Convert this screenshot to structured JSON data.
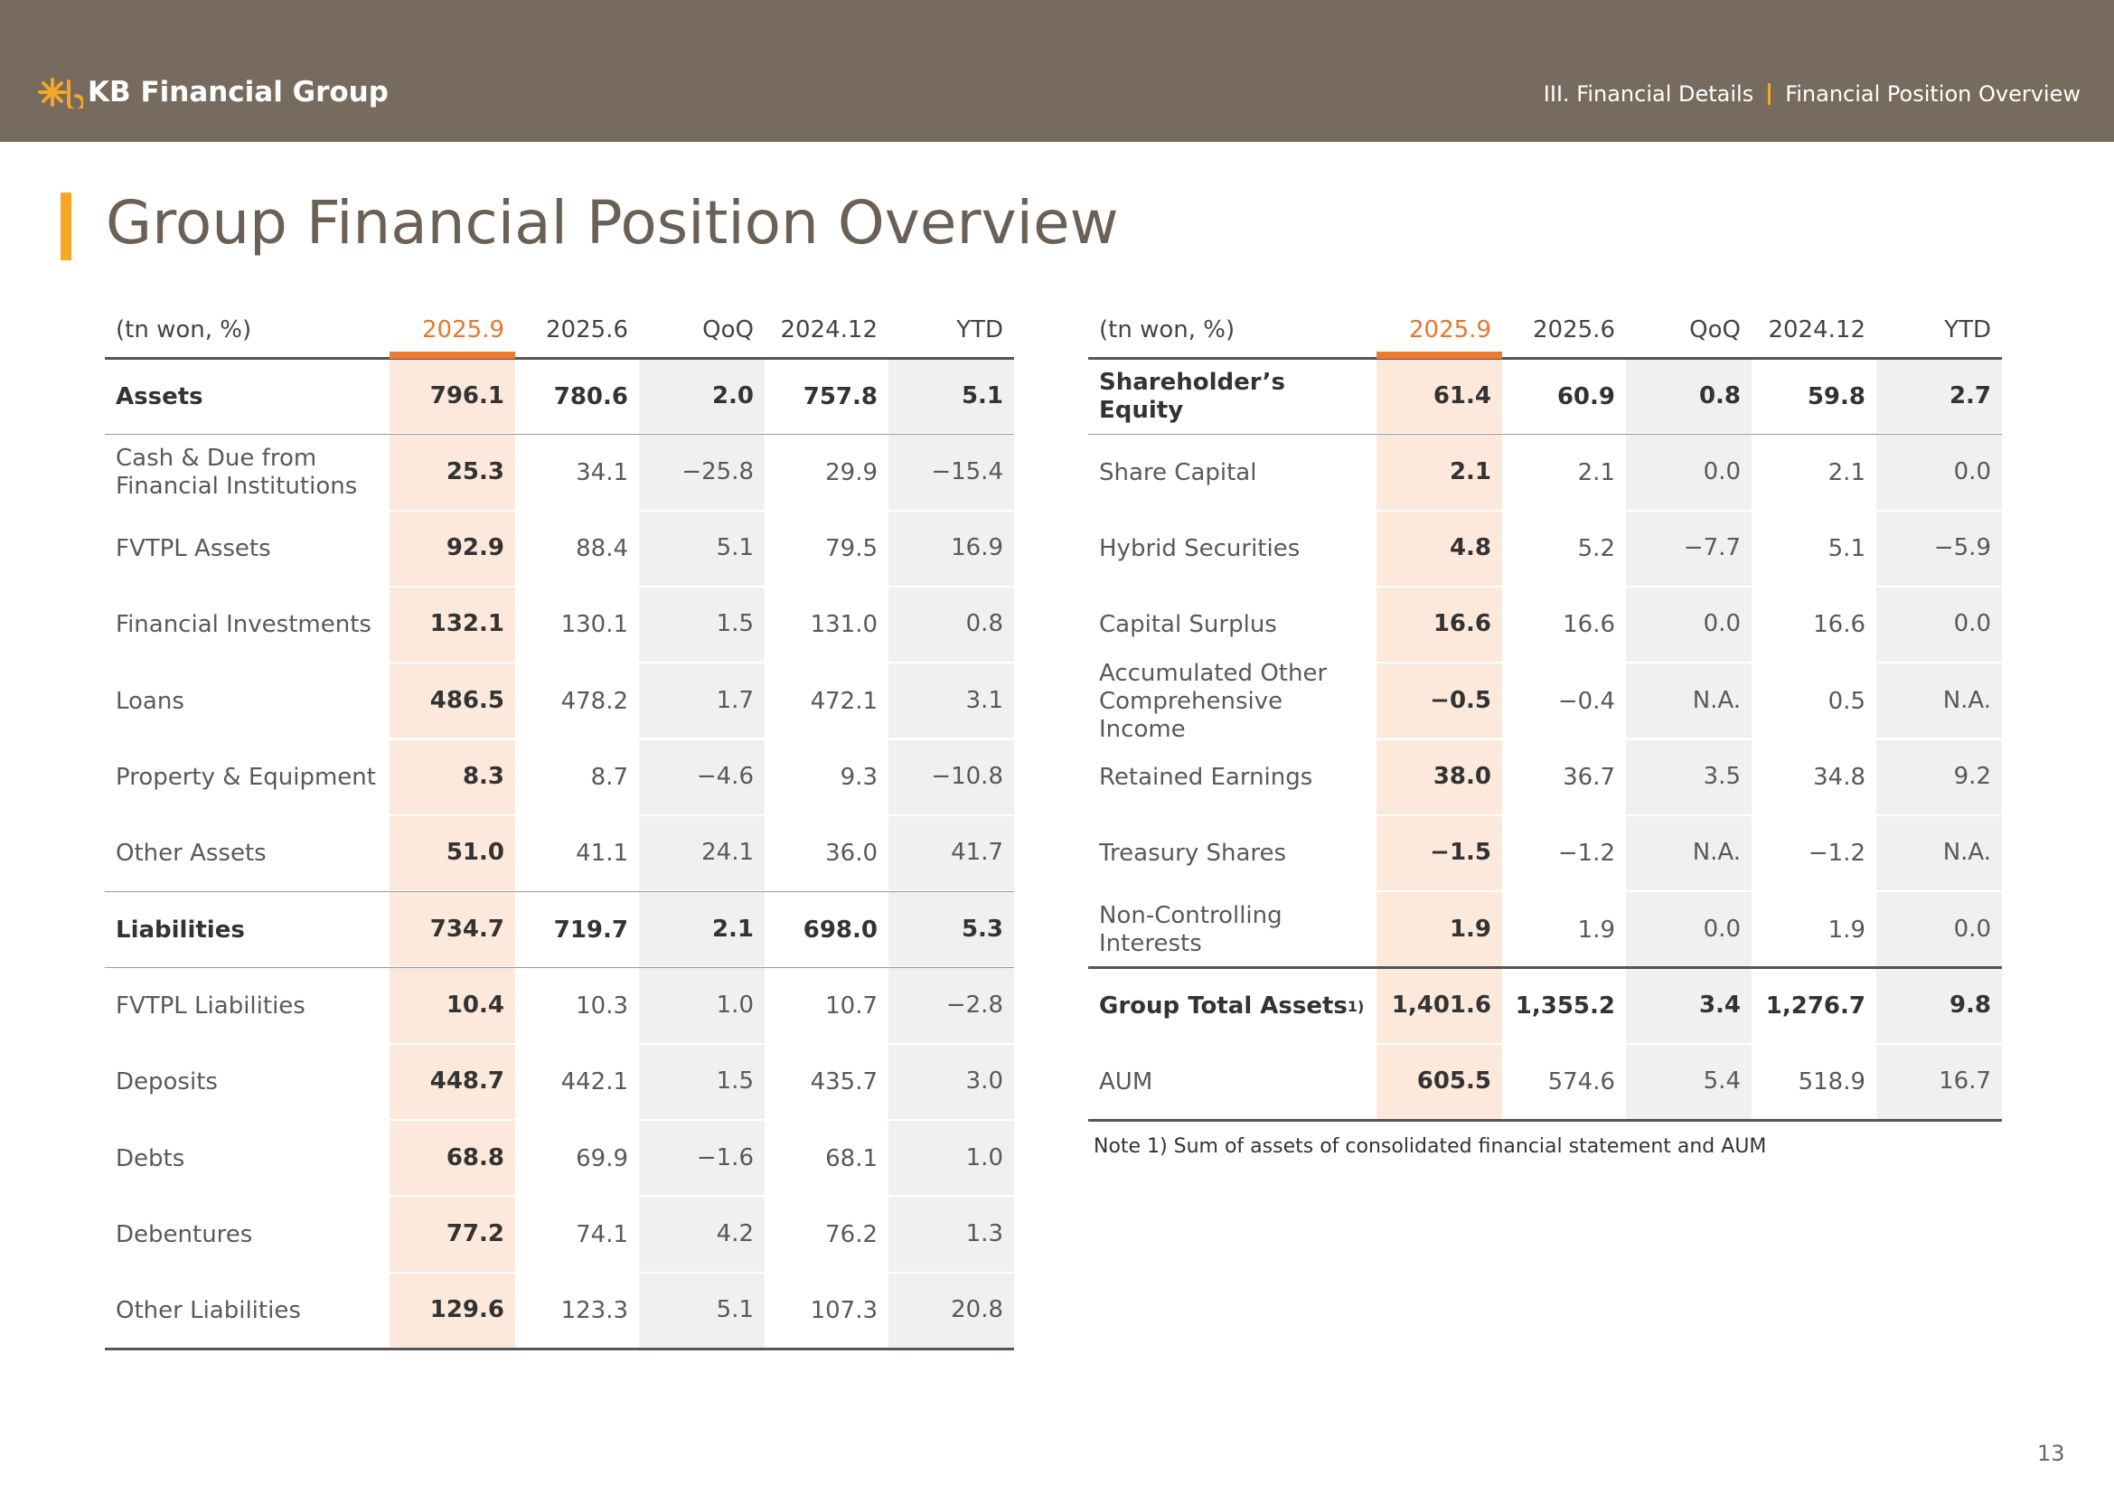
{
  "header": {
    "logo": "KB Financial Group",
    "section": "III. Financial Details",
    "page_title": "Financial Position Overview"
  },
  "title": "Group Financial Position Overview",
  "left_table": {
    "columns": [
      "(tn won, %)",
      "2025.9",
      "2025.6",
      "QoQ",
      "2024.12",
      "YTD"
    ],
    "rows": [
      [
        "Assets",
        "796.1",
        "780.6",
        "2.0",
        "757.8",
        "5.1"
      ],
      [
        "Cash & Due from Financial Institutions",
        "25.3",
        "34.1",
        "−25.8",
        "29.9",
        "−15.4"
      ],
      [
        "FVTPL Assets",
        "92.9",
        "88.4",
        "5.1",
        "79.5",
        "16.9"
      ],
      [
        "Financial Investments",
        "132.1",
        "130.1",
        "1.5",
        "131.0",
        "0.8"
      ],
      [
        "Loans",
        "486.5",
        "478.2",
        "1.7",
        "472.1",
        "3.1"
      ],
      [
        "Property & Equipment",
        "8.3",
        "8.7",
        "−4.6",
        "9.3",
        "−10.8"
      ],
      [
        "Other Assets",
        "51.0",
        "41.1",
        "24.1",
        "36.0",
        "41.7"
      ],
      [
        "Liabilities",
        "734.7",
        "719.7",
        "2.1",
        "698.0",
        "5.3"
      ],
      [
        "FVTPL Liabilities",
        "10.4",
        "10.3",
        "1.0",
        "10.7",
        "−2.8"
      ],
      [
        "Deposits",
        "448.7",
        "442.1",
        "1.5",
        "435.7",
        "3.0"
      ],
      [
        "Debts",
        "68.8",
        "69.9",
        "−1.6",
        "68.1",
        "1.0"
      ],
      [
        "Debentures",
        "77.2",
        "74.1",
        "4.2",
        "76.2",
        "1.3"
      ],
      [
        "Other Liabilities",
        "129.6",
        "123.3",
        "5.1",
        "107.3",
        "20.8"
      ]
    ]
  },
  "right_table": {
    "columns": [
      "(tn won, %)",
      "2025.9",
      "2025.6",
      "QoQ",
      "2024.12",
      "YTD"
    ],
    "rows": [
      [
        "Shareholder’s Equity",
        "61.4",
        "60.9",
        "0.8",
        "59.8",
        "2.7"
      ],
      [
        "Share Capital",
        "2.1",
        "2.1",
        "0.0",
        "2.1",
        "0.0"
      ],
      [
        "Hybrid Securities",
        "4.8",
        "5.2",
        "−7.7",
        "5.1",
        "−5.9"
      ],
      [
        "Capital Surplus",
        "16.6",
        "16.6",
        "0.0",
        "16.6",
        "0.0"
      ],
      [
        "Accumulated Other Comprehensive Income",
        "−0.5",
        "−0.4",
        "N.A.",
        "0.5",
        "N.A."
      ],
      [
        "Retained Earnings",
        "38.0",
        "36.7",
        "3.5",
        "34.8",
        "9.2"
      ],
      [
        "Treasury Shares",
        "−1.5",
        "−1.2",
        "N.A.",
        "−1.2",
        "N.A."
      ],
      [
        "Non-Controlling Interests",
        "1.9",
        "1.9",
        "0.0",
        "1.9",
        "0.0"
      ],
      [
        {
          "text": "Group Total Assets",
          "sup": "1)"
        },
        "1,401.6",
        "1,355.2",
        "3.4",
        "1,276.7",
        "9.8"
      ],
      [
        "AUM",
        "605.5",
        "574.6",
        "5.4",
        "518.9",
        "16.7"
      ]
    ]
  },
  "note": "Note 1) Sum of assets of consolidated financial statement and AUM",
  "page_number": "13"
}
